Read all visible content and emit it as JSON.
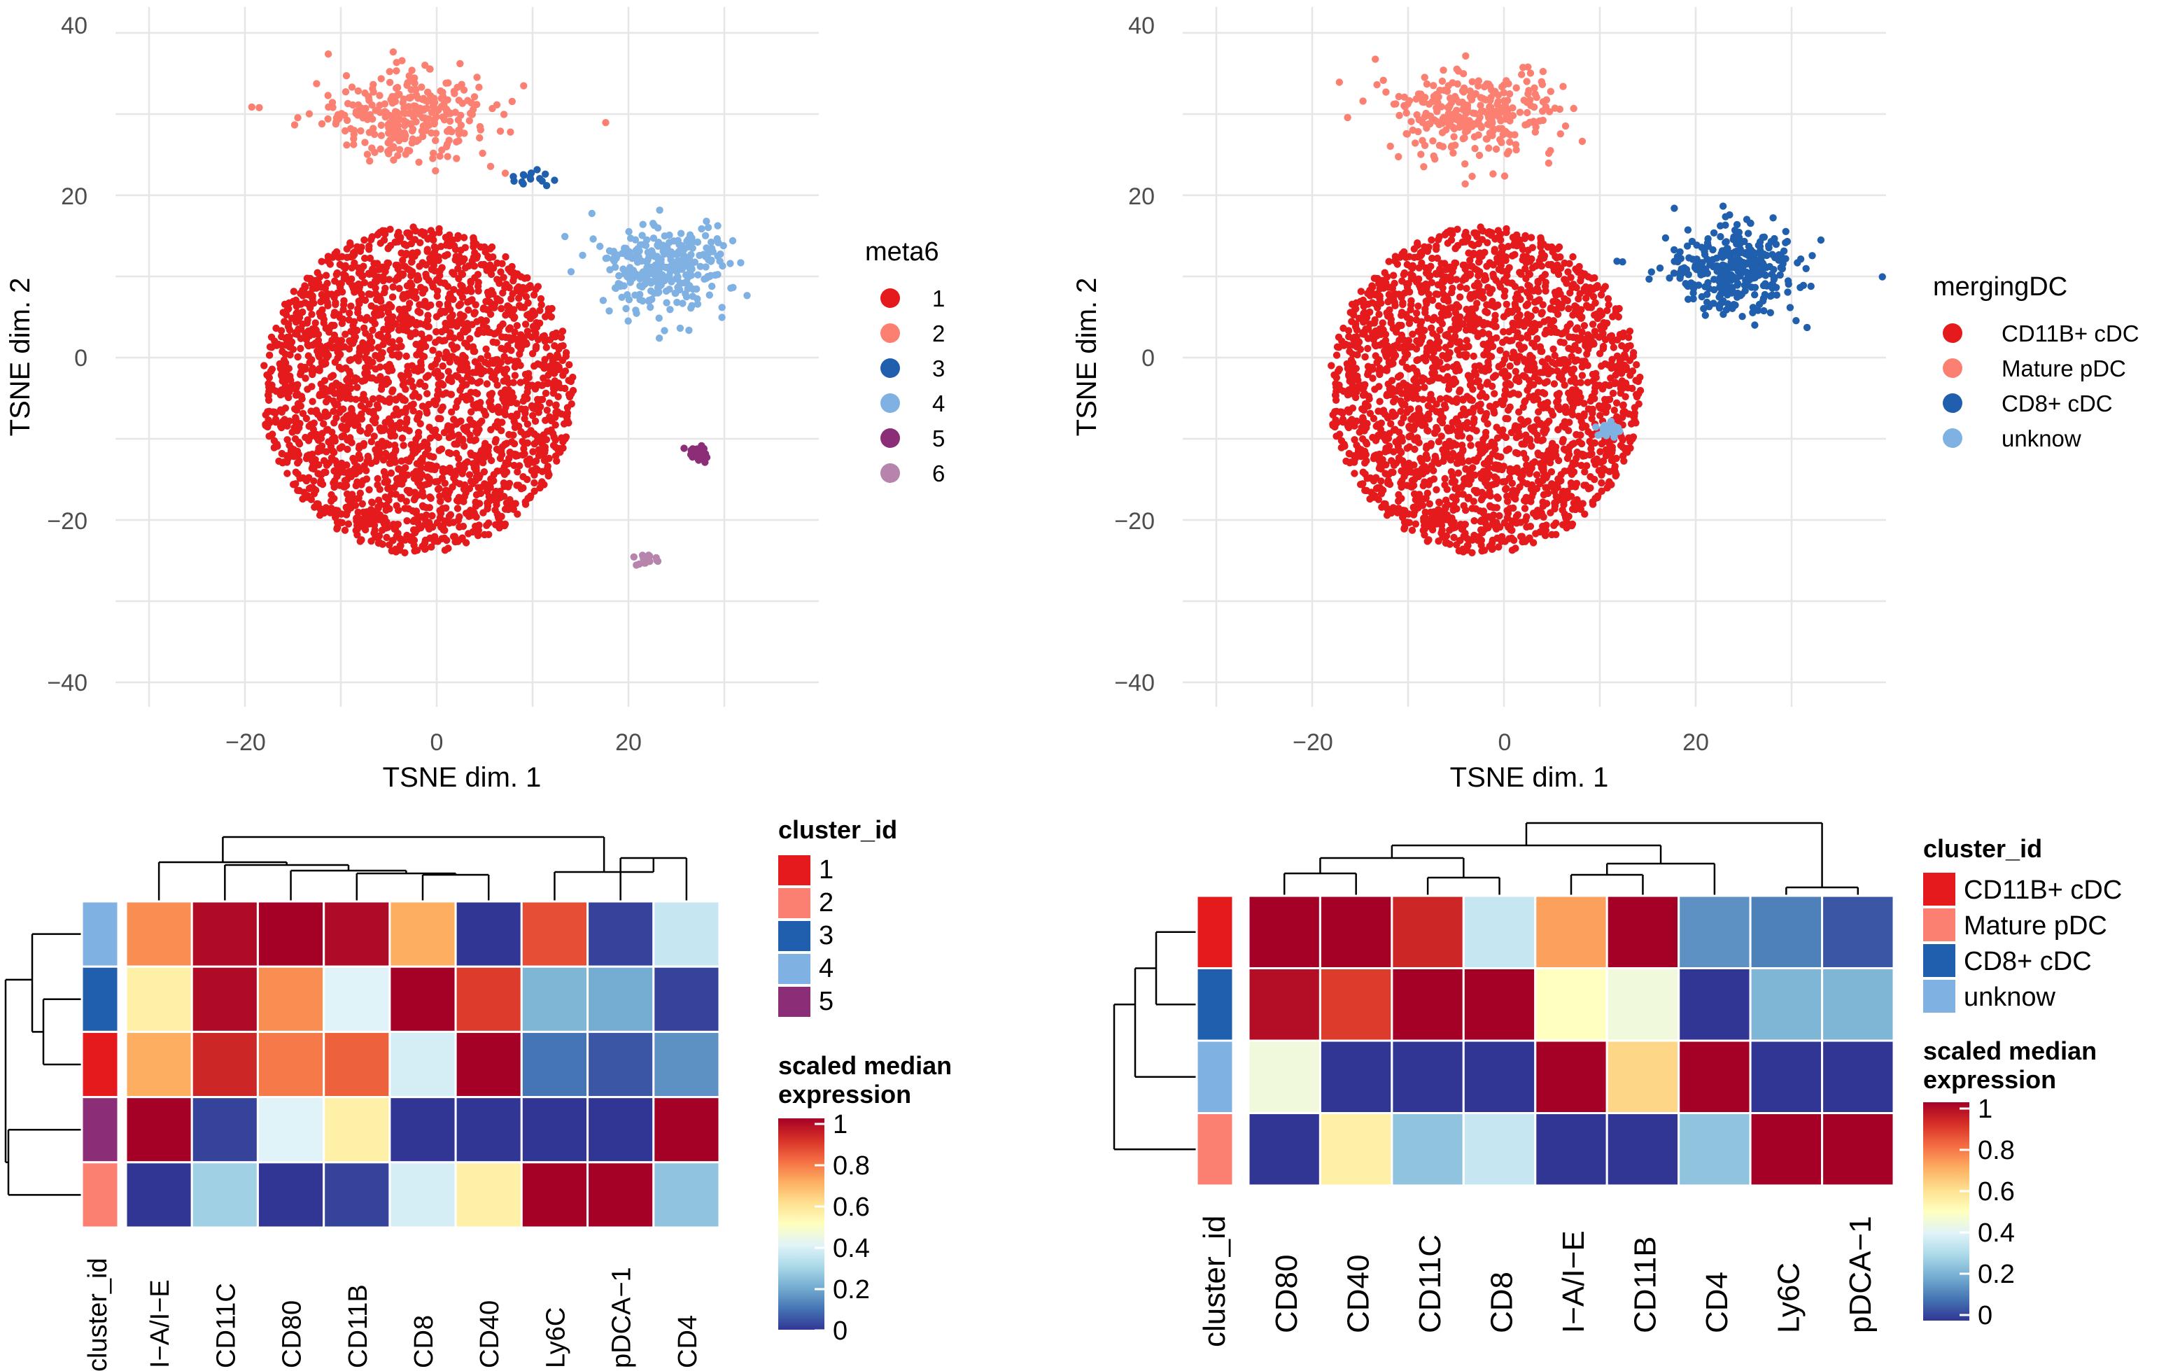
{
  "colors": {
    "c1": "#E41A1C",
    "c2": "#FB8072",
    "c3": "#1F5FAD",
    "c4": "#80B1E3",
    "c5": "#8C2D77",
    "c6": "#B784AE",
    "scale": [
      "#313695",
      "#4575B4",
      "#74ADD1",
      "#ABD9E9",
      "#E0F3F8",
      "#FFFFBF",
      "#FEE090",
      "#FDAE61",
      "#F46D43",
      "#D73027",
      "#A50026"
    ]
  },
  "chart_data": [
    {
      "type": "scatter",
      "id": "tsne_meta6",
      "xlabel": "TSNE dim. 1",
      "ylabel": "TSNE dim. 2",
      "xlim": [
        -34,
        38
      ],
      "ylim": [
        -42,
        42
      ],
      "x_ticks": [
        "−20",
        "0",
        "20"
      ],
      "y_ticks": [
        "40",
        "20",
        "0",
        "−20",
        "−40"
      ],
      "legend_title": "meta6",
      "legend": [
        "1",
        "2",
        "3",
        "4",
        "5",
        "6"
      ],
      "clusters": [
        {
          "name": "1",
          "approx_center": [
            -2,
            -4
          ],
          "spread": [
            13,
            13
          ],
          "share": 0.78
        },
        {
          "name": "2",
          "approx_center": [
            -3,
            30
          ],
          "spread": [
            8,
            5
          ],
          "share": 0.1
        },
        {
          "name": "4",
          "approx_center": [
            24,
            11
          ],
          "spread": [
            6,
            5
          ],
          "share": 0.1
        },
        {
          "name": "5",
          "approx_center": [
            27,
            -12
          ],
          "spread": [
            1,
            1
          ],
          "share": 0.01
        },
        {
          "name": "3",
          "approx_center": [
            10,
            22
          ],
          "spread": [
            3,
            1
          ],
          "share": 0.005
        },
        {
          "name": "6",
          "approx_center": [
            22,
            -25
          ],
          "spread": [
            1,
            1
          ],
          "share": 0.005
        }
      ]
    },
    {
      "type": "scatter",
      "id": "tsne_mergingDC",
      "xlabel": "TSNE dim. 1",
      "ylabel": "TSNE dim. 2",
      "xlim": [
        -34,
        38
      ],
      "ylim": [
        -42,
        42
      ],
      "x_ticks": [
        "−20",
        "0",
        "20"
      ],
      "y_ticks": [
        "40",
        "20",
        "0",
        "−20",
        "−40"
      ],
      "legend_title": "mergingDC",
      "legend": [
        "CD11B+ cDC",
        "Mature pDC",
        "CD8+ cDC",
        "unknow"
      ],
      "clusters": [
        {
          "name": "CD11B+ cDC",
          "approx_center": [
            -2,
            -4
          ],
          "spread": [
            13,
            13
          ],
          "share": 0.78
        },
        {
          "name": "Mature pDC",
          "approx_center": [
            -3,
            30
          ],
          "spread": [
            8,
            5
          ],
          "share": 0.1
        },
        {
          "name": "CD8+ cDC",
          "approx_center": [
            24,
            11
          ],
          "spread": [
            6,
            5
          ],
          "share": 0.11
        },
        {
          "name": "unknow",
          "approx_center": [
            11,
            -9
          ],
          "spread": [
            1,
            1
          ],
          "share": 0.01
        }
      ]
    },
    {
      "type": "heatmap",
      "id": "heatmap_meta6",
      "row_annotation_title": "cluster_id",
      "rows": [
        "4",
        "3",
        "1",
        "5",
        "2"
      ],
      "columns": [
        "I−A/I−E",
        "CD11C",
        "CD80",
        "CD11B",
        "CD8",
        "CD40",
        "Ly6C",
        "pDCA−1",
        "CD4"
      ],
      "values": [
        [
          0.75,
          0.98,
          1.0,
          0.98,
          0.7,
          0.0,
          0.85,
          0.02,
          0.35
        ],
        [
          0.55,
          0.98,
          0.75,
          0.4,
          1.0,
          0.88,
          0.22,
          0.2,
          0.02
        ],
        [
          0.7,
          0.92,
          0.78,
          0.82,
          0.38,
          1.0,
          0.1,
          0.05,
          0.15
        ],
        [
          1.0,
          0.02,
          0.4,
          0.55,
          0.0,
          0.0,
          0.0,
          0.0,
          1.0
        ],
        [
          0.0,
          0.28,
          0.0,
          0.02,
          0.38,
          0.55,
          1.0,
          1.0,
          0.25
        ]
      ],
      "legend_title": "cluster_id",
      "legend": [
        "1",
        "2",
        "3",
        "4",
        "5"
      ],
      "scale_title_1": "scaled median",
      "scale_title_2": "expression",
      "scale_ticks": [
        "1",
        "0.8",
        "0.6",
        "0.4",
        "0.2",
        "0"
      ],
      "scale_range": [
        0,
        1
      ]
    },
    {
      "type": "heatmap",
      "id": "heatmap_mergingDC",
      "row_annotation_title": "cluster_id",
      "rows": [
        "CD11B+ cDC",
        "CD8+ cDC",
        "unknow",
        "Mature pDC"
      ],
      "columns": [
        "CD80",
        "CD40",
        "CD11C",
        "CD8",
        "I−A/I−E",
        "CD11B",
        "CD4",
        "Ly6C",
        "pDCA−1"
      ],
      "values": [
        [
          1.0,
          1.0,
          0.92,
          0.35,
          0.72,
          1.0,
          0.15,
          0.12,
          0.05
        ],
        [
          0.97,
          0.88,
          1.0,
          1.0,
          0.5,
          0.45,
          0.0,
          0.22,
          0.22
        ],
        [
          0.45,
          0.0,
          0.0,
          0.0,
          1.0,
          0.62,
          1.0,
          0.0,
          0.0
        ],
        [
          0.0,
          0.55,
          0.25,
          0.35,
          0.0,
          0.0,
          0.25,
          1.0,
          1.0
        ]
      ],
      "legend_title": "cluster_id",
      "legend": [
        "CD11B+ cDC",
        "Mature pDC",
        "CD8+ cDC",
        "unknow"
      ],
      "scale_title_1": "scaled median",
      "scale_title_2": "expression",
      "scale_ticks": [
        "1",
        "0.8",
        "0.6",
        "0.4",
        "0.2",
        "0"
      ],
      "scale_range": [
        0,
        1
      ]
    }
  ]
}
